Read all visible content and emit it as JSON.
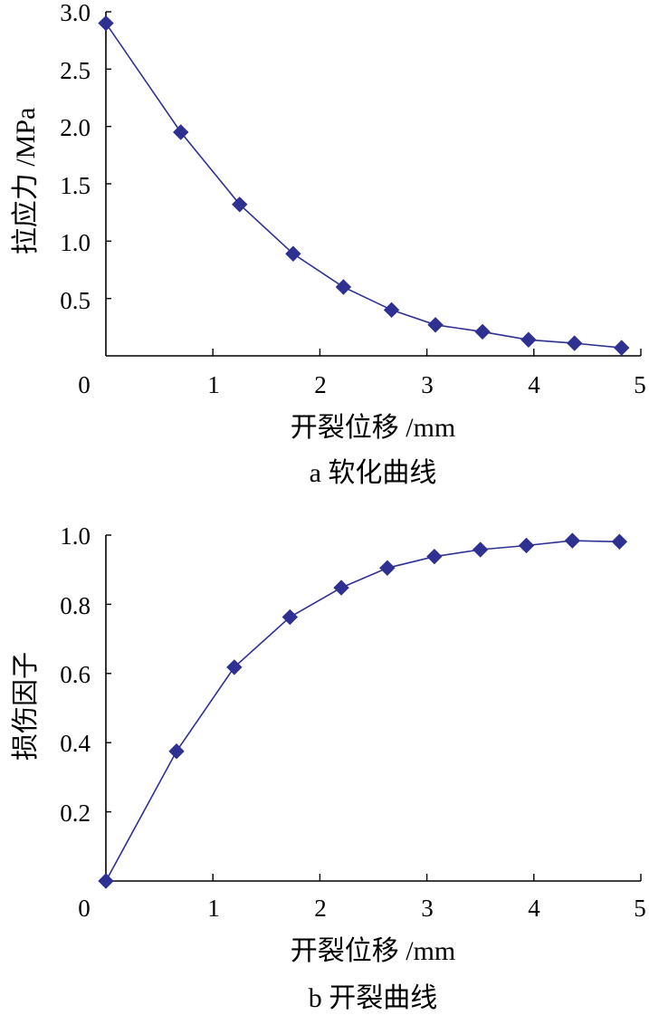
{
  "colors": {
    "series": "#2e3192",
    "axis": "#000000",
    "background": "#ffffff"
  },
  "chart_data": [
    {
      "type": "line",
      "marker": "diamond",
      "caption": "a  软化曲线",
      "xlabel": "开裂位移 /mm",
      "ylabel": "拉应力 /MPa",
      "xlim": [
        0,
        5
      ],
      "ylim": [
        0,
        3.0
      ],
      "x_ticks": [
        0,
        1,
        2,
        3,
        4,
        5
      ],
      "y_ticks": [
        0.5,
        1.0,
        1.5,
        2.0,
        2.5,
        3.0
      ],
      "x_tick_labels": [
        "0",
        "1",
        "2",
        "3",
        "4",
        "5"
      ],
      "y_tick_labels": [
        "0.5",
        "1.0",
        "1.5",
        "2.0",
        "2.5",
        "3.0"
      ],
      "grid": false,
      "series": [
        {
          "x": [
            0.0,
            0.7,
            1.25,
            1.75,
            2.22,
            2.67,
            3.08,
            3.52,
            3.95,
            4.38,
            4.82
          ],
          "y": [
            2.9,
            1.95,
            1.32,
            0.89,
            0.6,
            0.4,
            0.27,
            0.21,
            0.14,
            0.11,
            0.07
          ]
        }
      ]
    },
    {
      "type": "line",
      "marker": "diamond",
      "caption": "b  开裂曲线",
      "xlabel": "开裂位移 /mm",
      "ylabel": "损伤因子",
      "xlim": [
        0,
        5
      ],
      "ylim": [
        0,
        1.0
      ],
      "x_ticks": [
        0,
        1,
        2,
        3,
        4,
        5
      ],
      "y_ticks": [
        0.2,
        0.4,
        0.6,
        0.8,
        1.0
      ],
      "x_tick_labels": [
        "0",
        "1",
        "2",
        "3",
        "4",
        "5"
      ],
      "y_tick_labels": [
        "0.2",
        "0.4",
        "0.6",
        "0.8",
        "1.0"
      ],
      "grid": false,
      "series": [
        {
          "x": [
            0.0,
            0.66,
            1.2,
            1.72,
            2.2,
            2.63,
            3.07,
            3.5,
            3.93,
            4.36,
            4.8
          ],
          "y": [
            0.0,
            0.375,
            0.618,
            0.763,
            0.848,
            0.905,
            0.938,
            0.958,
            0.97,
            0.984,
            0.981
          ]
        }
      ]
    }
  ]
}
